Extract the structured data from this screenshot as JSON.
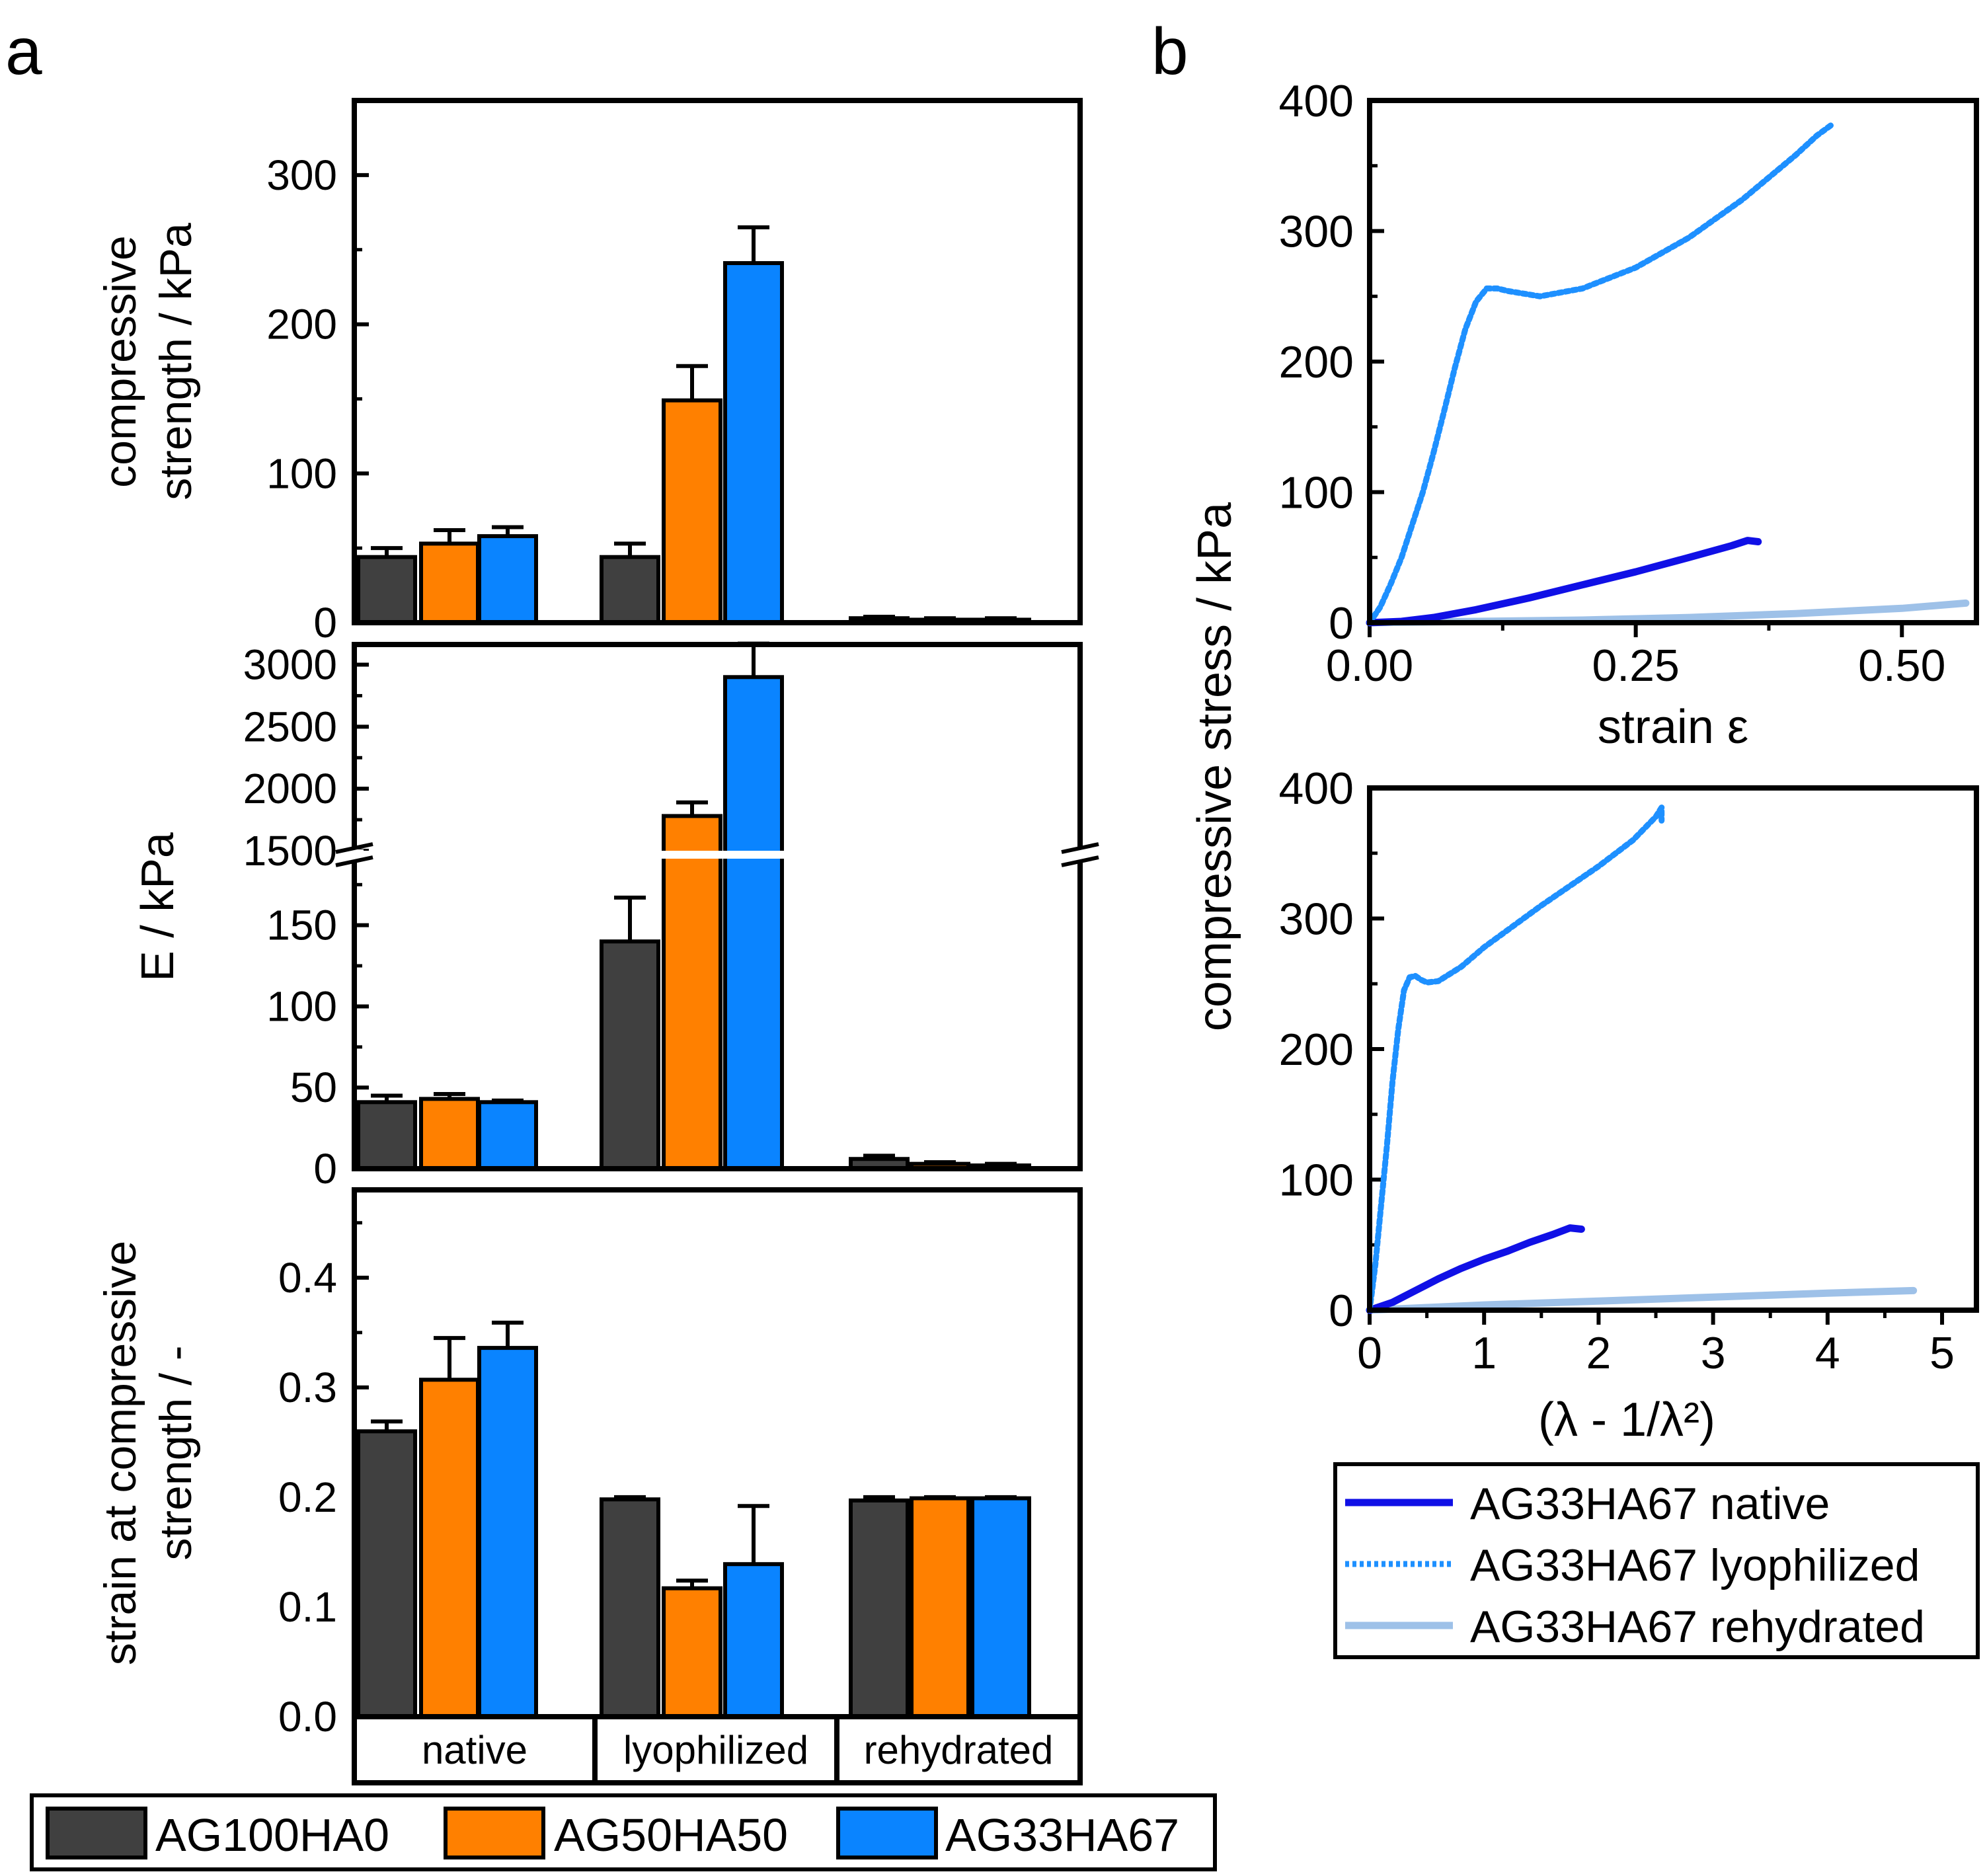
{
  "figure": {
    "panel_a_label": "a",
    "panel_b_label": "b",
    "colors": {
      "AG100HA0": "#404040",
      "AG50HA50": "#ff8000",
      "AG33HA67": "#0a84ff",
      "native_line": "#1010e6",
      "lyophilized_line": "#1e90ff",
      "rehydrated_line": "#9ec1e8"
    }
  },
  "chart_data": [
    {
      "id": "a1",
      "type": "bar",
      "ylabel_lines": [
        "compressive",
        "strength / kPa"
      ],
      "ylim": [
        0,
        350
      ],
      "yticks": [
        0,
        100,
        200,
        300
      ],
      "ytick_labels": [
        "0",
        "100",
        "200",
        "300"
      ],
      "categories": [
        "native",
        "lyophilized",
        "rehydrated"
      ],
      "series": [
        {
          "name": "AG100HA0",
          "values": [
            44,
            44,
            3
          ],
          "errors": [
            6,
            9,
            1
          ]
        },
        {
          "name": "AG50HA50",
          "values": [
            53,
            149,
            2
          ],
          "errors": [
            9,
            23,
            1
          ]
        },
        {
          "name": "AG33HA67",
          "values": [
            58,
            241,
            2
          ],
          "errors": [
            6,
            24,
            1
          ]
        }
      ]
    },
    {
      "id": "a2",
      "type": "bar",
      "ylabel": "E / kPa",
      "axis_break": {
        "lower": [
          0,
          180
        ],
        "upper": [
          1500,
          3200
        ]
      },
      "yticks_lower": [
        0,
        50,
        100,
        150
      ],
      "ytick_labels_lower": [
        "0",
        "50",
        "100",
        "150"
      ],
      "yticks_upper": [
        1500,
        2000,
        2500,
        3000
      ],
      "ytick_labels_upper": [
        "1500",
        "2000",
        "2500",
        "3000"
      ],
      "categories": [
        "native",
        "lyophilized",
        "rehydrated"
      ],
      "series": [
        {
          "name": "AG100HA0",
          "values": [
            41,
            140,
            6
          ],
          "errors": [
            4,
            27,
            2
          ]
        },
        {
          "name": "AG50HA50",
          "values": [
            43,
            1780,
            3
          ],
          "errors": [
            3,
            110,
            1
          ]
        },
        {
          "name": "AG33HA67",
          "values": [
            41,
            2900,
            2
          ],
          "errors": [
            1,
            270,
            1
          ]
        }
      ]
    },
    {
      "id": "a3",
      "type": "bar",
      "ylabel_lines": [
        "strain at compressive",
        "strength / -"
      ],
      "ylim": [
        0,
        0.48
      ],
      "yticks": [
        0.0,
        0.1,
        0.2,
        0.3,
        0.4
      ],
      "ytick_labels": [
        "0.0",
        "0.1",
        "0.2",
        "0.3",
        "0.4"
      ],
      "categories": [
        "native",
        "lyophilized",
        "rehydrated"
      ],
      "series": [
        {
          "name": "AG100HA0",
          "values": [
            0.26,
            0.198,
            0.197
          ],
          "errors": [
            0.009,
            0.002,
            0.003
          ]
        },
        {
          "name": "AG50HA50",
          "values": [
            0.307,
            0.117,
            0.199
          ],
          "errors": [
            0.038,
            0.007,
            0.001
          ]
        },
        {
          "name": "AG33HA67",
          "values": [
            0.336,
            0.139,
            0.199
          ],
          "errors": [
            0.023,
            0.053,
            0.001
          ]
        }
      ]
    },
    {
      "id": "b1",
      "type": "line",
      "xlabel": "strain ε",
      "xlim": [
        0,
        0.57
      ],
      "ylim": [
        0,
        400
      ],
      "xticks": [
        0,
        0.25,
        0.5
      ],
      "xtick_labels": [
        "0.00",
        "0.25",
        "0.50"
      ],
      "yticks": [
        0,
        100,
        200,
        300,
        400
      ],
      "ytick_labels": [
        "0",
        "100",
        "200",
        "300",
        "400"
      ],
      "series": [
        {
          "name": "AG33HA67 native",
          "style": "solid",
          "x": [
            0,
            0.03,
            0.06,
            0.1,
            0.15,
            0.2,
            0.25,
            0.3,
            0.34,
            0.355,
            0.365
          ],
          "y": [
            0,
            1,
            4,
            10,
            19,
            29,
            39,
            50,
            59,
            63,
            62
          ]
        },
        {
          "name": "AG33HA67 lyophilized",
          "style": "dotted",
          "x": [
            0,
            0.01,
            0.02,
            0.03,
            0.04,
            0.05,
            0.06,
            0.07,
            0.08,
            0.09,
            0.1,
            0.11,
            0.12,
            0.13,
            0.16,
            0.2,
            0.25,
            0.3,
            0.35,
            0.4,
            0.42,
            0.435
          ],
          "y": [
            0,
            12,
            30,
            50,
            75,
            100,
            130,
            162,
            195,
            225,
            246,
            256,
            256,
            254,
            250,
            256,
            272,
            295,
            324,
            358,
            373,
            382
          ]
        },
        {
          "name": "AG33HA67 rehydrated",
          "style": "solid",
          "x": [
            0,
            0.1,
            0.2,
            0.3,
            0.4,
            0.5,
            0.56
          ],
          "y": [
            0,
            1,
            2,
            4,
            7,
            11,
            15
          ]
        }
      ]
    },
    {
      "id": "b2",
      "type": "line",
      "xlabel": "(λ - 1/λ²)",
      "xlim": [
        0,
        5.3
      ],
      "ylim": [
        0,
        400
      ],
      "xticks": [
        0,
        1,
        2,
        3,
        4,
        5
      ],
      "xtick_labels": [
        "0",
        "1",
        "2",
        "3",
        "4",
        "5"
      ],
      "yticks": [
        0,
        100,
        200,
        300,
        400
      ],
      "ytick_labels": [
        "0",
        "100",
        "200",
        "300",
        "400"
      ],
      "series": [
        {
          "name": "AG33HA67 native",
          "style": "solid",
          "x": [
            0,
            0.2,
            0.4,
            0.6,
            0.8,
            1.0,
            1.2,
            1.4,
            1.6,
            1.75,
            1.85
          ],
          "y": [
            0,
            6,
            15,
            24,
            32,
            39,
            45,
            52,
            58,
            63,
            62
          ]
        },
        {
          "name": "AG33HA67 lyophilized",
          "style": "dotted",
          "x": [
            0,
            0.05,
            0.1,
            0.15,
            0.2,
            0.25,
            0.3,
            0.35,
            0.4,
            0.45,
            0.5,
            0.6,
            0.8,
            1.0,
            1.5,
            2.0,
            2.3,
            2.5,
            2.55,
            2.55
          ],
          "y": [
            0,
            35,
            80,
            125,
            175,
            215,
            245,
            255,
            256,
            253,
            251,
            252,
            263,
            278,
            310,
            340,
            360,
            378,
            385,
            375
          ]
        },
        {
          "name": "AG33HA67 rehydrated",
          "style": "solid",
          "x": [
            0,
            0.5,
            1,
            2,
            3,
            4,
            4.75
          ],
          "y": [
            0,
            2,
            4,
            7,
            10,
            13,
            15
          ]
        }
      ]
    }
  ],
  "shared_ylabel_b": "compressive stress / kPa",
  "legend_a": [
    "AG100HA0",
    "AG50HA50",
    "AG33HA67"
  ],
  "legend_b": [
    "AG33HA67 native",
    "AG33HA67 lyophilized",
    "AG33HA67 rehydrated"
  ]
}
